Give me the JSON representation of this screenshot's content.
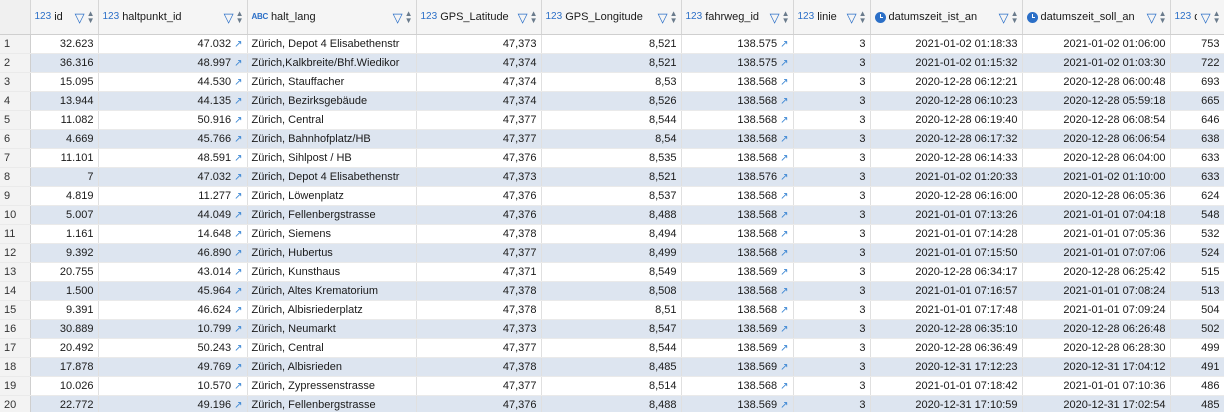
{
  "columns": [
    {
      "key": "id",
      "label": "id",
      "type": "123"
    },
    {
      "key": "haltpunkt_id",
      "label": "haltpunkt_id",
      "type": "123"
    },
    {
      "key": "halt_lang",
      "label": "halt_lang",
      "type": "ABC"
    },
    {
      "key": "lat",
      "label": "GPS_Latitude",
      "type": "123"
    },
    {
      "key": "lon",
      "label": "GPS_Longitude",
      "type": "123"
    },
    {
      "key": "fahrweg_id",
      "label": "fahrweg_id",
      "type": "123"
    },
    {
      "key": "linie",
      "label": "linie",
      "type": "123"
    },
    {
      "key": "ist",
      "label": "datumszeit_ist_an",
      "type": "clock"
    },
    {
      "key": "soll",
      "label": "datumszeit_soll_an",
      "type": "clock"
    },
    {
      "key": "delay",
      "label": "delay",
      "type": "123"
    }
  ],
  "rows": [
    {
      "n": "1",
      "id": "32.623",
      "hp": "47.032",
      "hl": "Zürich, Depot 4 Elisabethenstr",
      "lat": "47,373",
      "lon": "8,521",
      "fw": "138.575",
      "li": "3",
      "ist": "2021-01-02 01:18:33",
      "soll": "2021-01-02 01:06:00",
      "delay": "753"
    },
    {
      "n": "2",
      "id": "36.316",
      "hp": "48.997",
      "hl": "Zürich,Kalkbreite/Bhf.Wiedikor",
      "lat": "47,374",
      "lon": "8,521",
      "fw": "138.575",
      "li": "3",
      "ist": "2021-01-02 01:15:32",
      "soll": "2021-01-02 01:03:30",
      "delay": "722"
    },
    {
      "n": "3",
      "id": "15.095",
      "hp": "44.530",
      "hl": "Zürich, Stauffacher",
      "lat": "47,374",
      "lon": "8,53",
      "fw": "138.568",
      "li": "3",
      "ist": "2020-12-28 06:12:21",
      "soll": "2020-12-28 06:00:48",
      "delay": "693"
    },
    {
      "n": "4",
      "id": "13.944",
      "hp": "44.135",
      "hl": "Zürich, Bezirksgebäude",
      "lat": "47,374",
      "lon": "8,526",
      "fw": "138.568",
      "li": "3",
      "ist": "2020-12-28 06:10:23",
      "soll": "2020-12-28 05:59:18",
      "delay": "665"
    },
    {
      "n": "5",
      "id": "11.082",
      "hp": "50.916",
      "hl": "Zürich, Central",
      "lat": "47,377",
      "lon": "8,544",
      "fw": "138.568",
      "li": "3",
      "ist": "2020-12-28 06:19:40",
      "soll": "2020-12-28 06:08:54",
      "delay": "646"
    },
    {
      "n": "6",
      "id": "4.669",
      "hp": "45.766",
      "hl": "Zürich, Bahnhofplatz/HB",
      "lat": "47,377",
      "lon": "8,54",
      "fw": "138.568",
      "li": "3",
      "ist": "2020-12-28 06:17:32",
      "soll": "2020-12-28 06:06:54",
      "delay": "638"
    },
    {
      "n": "7",
      "id": "11.101",
      "hp": "48.591",
      "hl": "Zürich, Sihlpost / HB",
      "lat": "47,376",
      "lon": "8,535",
      "fw": "138.568",
      "li": "3",
      "ist": "2020-12-28 06:14:33",
      "soll": "2020-12-28 06:04:00",
      "delay": "633"
    },
    {
      "n": "8",
      "id": "7",
      "hp": "47.032",
      "hl": "Zürich, Depot 4 Elisabethenstr",
      "lat": "47,373",
      "lon": "8,521",
      "fw": "138.576",
      "li": "3",
      "ist": "2021-01-02 01:20:33",
      "soll": "2021-01-02 01:10:00",
      "delay": "633"
    },
    {
      "n": "9",
      "id": "4.819",
      "hp": "11.277",
      "hl": "Zürich, Löwenplatz",
      "lat": "47,376",
      "lon": "8,537",
      "fw": "138.568",
      "li": "3",
      "ist": "2020-12-28 06:16:00",
      "soll": "2020-12-28 06:05:36",
      "delay": "624"
    },
    {
      "n": "10",
      "id": "5.007",
      "hp": "44.049",
      "hl": "Zürich, Fellenbergstrasse",
      "lat": "47,376",
      "lon": "8,488",
      "fw": "138.568",
      "li": "3",
      "ist": "2021-01-01 07:13:26",
      "soll": "2021-01-01 07:04:18",
      "delay": "548"
    },
    {
      "n": "11",
      "id": "1.161",
      "hp": "14.648",
      "hl": "Zürich, Siemens",
      "lat": "47,378",
      "lon": "8,494",
      "fw": "138.568",
      "li": "3",
      "ist": "2021-01-01 07:14:28",
      "soll": "2021-01-01 07:05:36",
      "delay": "532"
    },
    {
      "n": "12",
      "id": "9.392",
      "hp": "46.890",
      "hl": "Zürich, Hubertus",
      "lat": "47,377",
      "lon": "8,499",
      "fw": "138.568",
      "li": "3",
      "ist": "2021-01-01 07:15:50",
      "soll": "2021-01-01 07:07:06",
      "delay": "524"
    },
    {
      "n": "13",
      "id": "20.755",
      "hp": "43.014",
      "hl": "Zürich, Kunsthaus",
      "lat": "47,371",
      "lon": "8,549",
      "fw": "138.569",
      "li": "3",
      "ist": "2020-12-28 06:34:17",
      "soll": "2020-12-28 06:25:42",
      "delay": "515"
    },
    {
      "n": "14",
      "id": "1.500",
      "hp": "45.964",
      "hl": "Zürich, Altes Krematorium",
      "lat": "47,378",
      "lon": "8,508",
      "fw": "138.568",
      "li": "3",
      "ist": "2021-01-01 07:16:57",
      "soll": "2021-01-01 07:08:24",
      "delay": "513"
    },
    {
      "n": "15",
      "id": "9.391",
      "hp": "46.624",
      "hl": "Zürich, Albisriederplatz",
      "lat": "47,378",
      "lon": "8,51",
      "fw": "138.568",
      "li": "3",
      "ist": "2021-01-01 07:17:48",
      "soll": "2021-01-01 07:09:24",
      "delay": "504"
    },
    {
      "n": "16",
      "id": "30.889",
      "hp": "10.799",
      "hl": "Zürich, Neumarkt",
      "lat": "47,373",
      "lon": "8,547",
      "fw": "138.569",
      "li": "3",
      "ist": "2020-12-28 06:35:10",
      "soll": "2020-12-28 06:26:48",
      "delay": "502"
    },
    {
      "n": "17",
      "id": "20.492",
      "hp": "50.243",
      "hl": "Zürich, Central",
      "lat": "47,377",
      "lon": "8,544",
      "fw": "138.569",
      "li": "3",
      "ist": "2020-12-28 06:36:49",
      "soll": "2020-12-28 06:28:30",
      "delay": "499"
    },
    {
      "n": "18",
      "id": "17.878",
      "hp": "49.769",
      "hl": "Zürich, Albisrieden",
      "lat": "47,378",
      "lon": "8,485",
      "fw": "138.569",
      "li": "3",
      "ist": "2020-12-31 17:12:23",
      "soll": "2020-12-31 17:04:12",
      "delay": "491"
    },
    {
      "n": "19",
      "id": "10.026",
      "hp": "10.570",
      "hl": "Zürich, Zypressenstrasse",
      "lat": "47,377",
      "lon": "8,514",
      "fw": "138.568",
      "li": "3",
      "ist": "2021-01-01 07:18:42",
      "soll": "2021-01-01 07:10:36",
      "delay": "486"
    },
    {
      "n": "20",
      "id": "22.772",
      "hp": "49.196",
      "hl": "Zürich, Fellenbergstrasse",
      "lat": "47,376",
      "lon": "8,488",
      "fw": "138.569",
      "li": "3",
      "ist": "2020-12-31 17:10:59",
      "soll": "2020-12-31 17:02:54",
      "delay": "485"
    }
  ],
  "icons": {
    "filter": "filter-icon",
    "sort": "sort-icon",
    "link": "external-link-icon",
    "type_number": "123",
    "type_text": "ABC",
    "type_datetime": "clock-icon"
  },
  "colors": {
    "accent": "#2b6fc7",
    "row_alt": "#dde5f0",
    "header_bg": "#f5f5f5"
  }
}
